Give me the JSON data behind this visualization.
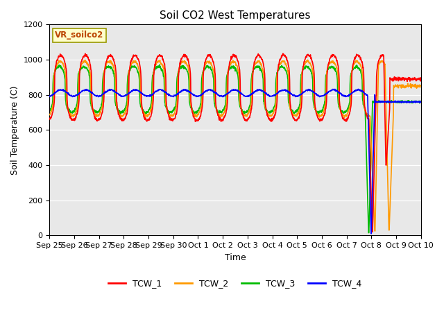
{
  "title": "Soil CO2 West Temperatures",
  "ylabel": "Soil Temperature (C)",
  "xlabel": "Time",
  "ylim": [
    0,
    1200
  ],
  "yticks": [
    0,
    200,
    400,
    600,
    800,
    1000,
    1200
  ],
  "legend_labels": [
    "TCW_1",
    "TCW_2",
    "TCW_3",
    "TCW_4"
  ],
  "line_colors": [
    "#ff0000",
    "#ff9900",
    "#00bb00",
    "#0000ff"
  ],
  "vr_label": "VR_soilco2",
  "vr_box_color": "#ffffcc",
  "vr_text_color": "#bb4400",
  "bg_color": "#e8e8e8",
  "n_days": 15,
  "dt": 0.01,
  "xtick_labels": [
    "Sep 25",
    "Sep 26",
    "Sep 27",
    "Sep 28",
    "Sep 29",
    "Sep 30",
    "Oct 1",
    "Oct 2",
    "Oct 3",
    "Oct 4",
    "Oct 5",
    "Oct 6",
    "Oct 7",
    "Oct 8",
    "Oct 9",
    "Oct 10"
  ]
}
